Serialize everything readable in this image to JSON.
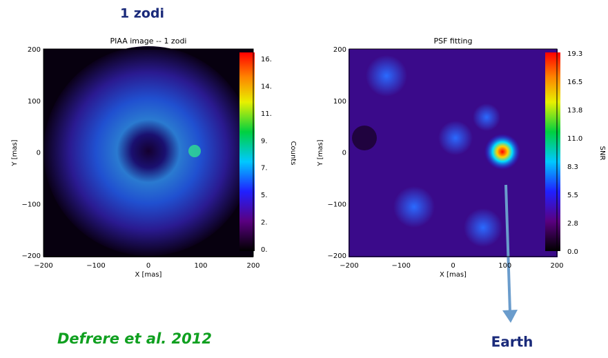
{
  "header": {
    "title": "1 zodi"
  },
  "panels": [
    {
      "title": "PIAA image -- 1 zodi",
      "x_label": "X [mas]",
      "y_label": "Y [mas]",
      "x_ticks": [
        "−200",
        "−100",
        "0",
        "100",
        "200"
      ],
      "y_ticks": [
        "200",
        "100",
        "0",
        "−100",
        "−200"
      ],
      "colorbar_label": "Counts",
      "colorbar_ticks": [
        "16.",
        "14.",
        "11.",
        "9.",
        "7.",
        "5.",
        "2.",
        "0."
      ]
    },
    {
      "title": "PSF fitting",
      "x_label": "X [mas]",
      "y_label": "Y [mas]",
      "x_ticks": [
        "−200",
        "−100",
        "0",
        "100",
        "200"
      ],
      "y_ticks": [
        "200",
        "100",
        "0",
        "−100",
        "−200"
      ],
      "colorbar_label": "SNR",
      "colorbar_ticks": [
        "19.3",
        "16.5",
        "13.8",
        "11.0",
        "8.3",
        "5.5",
        "2.8",
        "0.0"
      ]
    }
  ],
  "citation": "Defrere et al. 2012",
  "annotation": "Earth"
}
